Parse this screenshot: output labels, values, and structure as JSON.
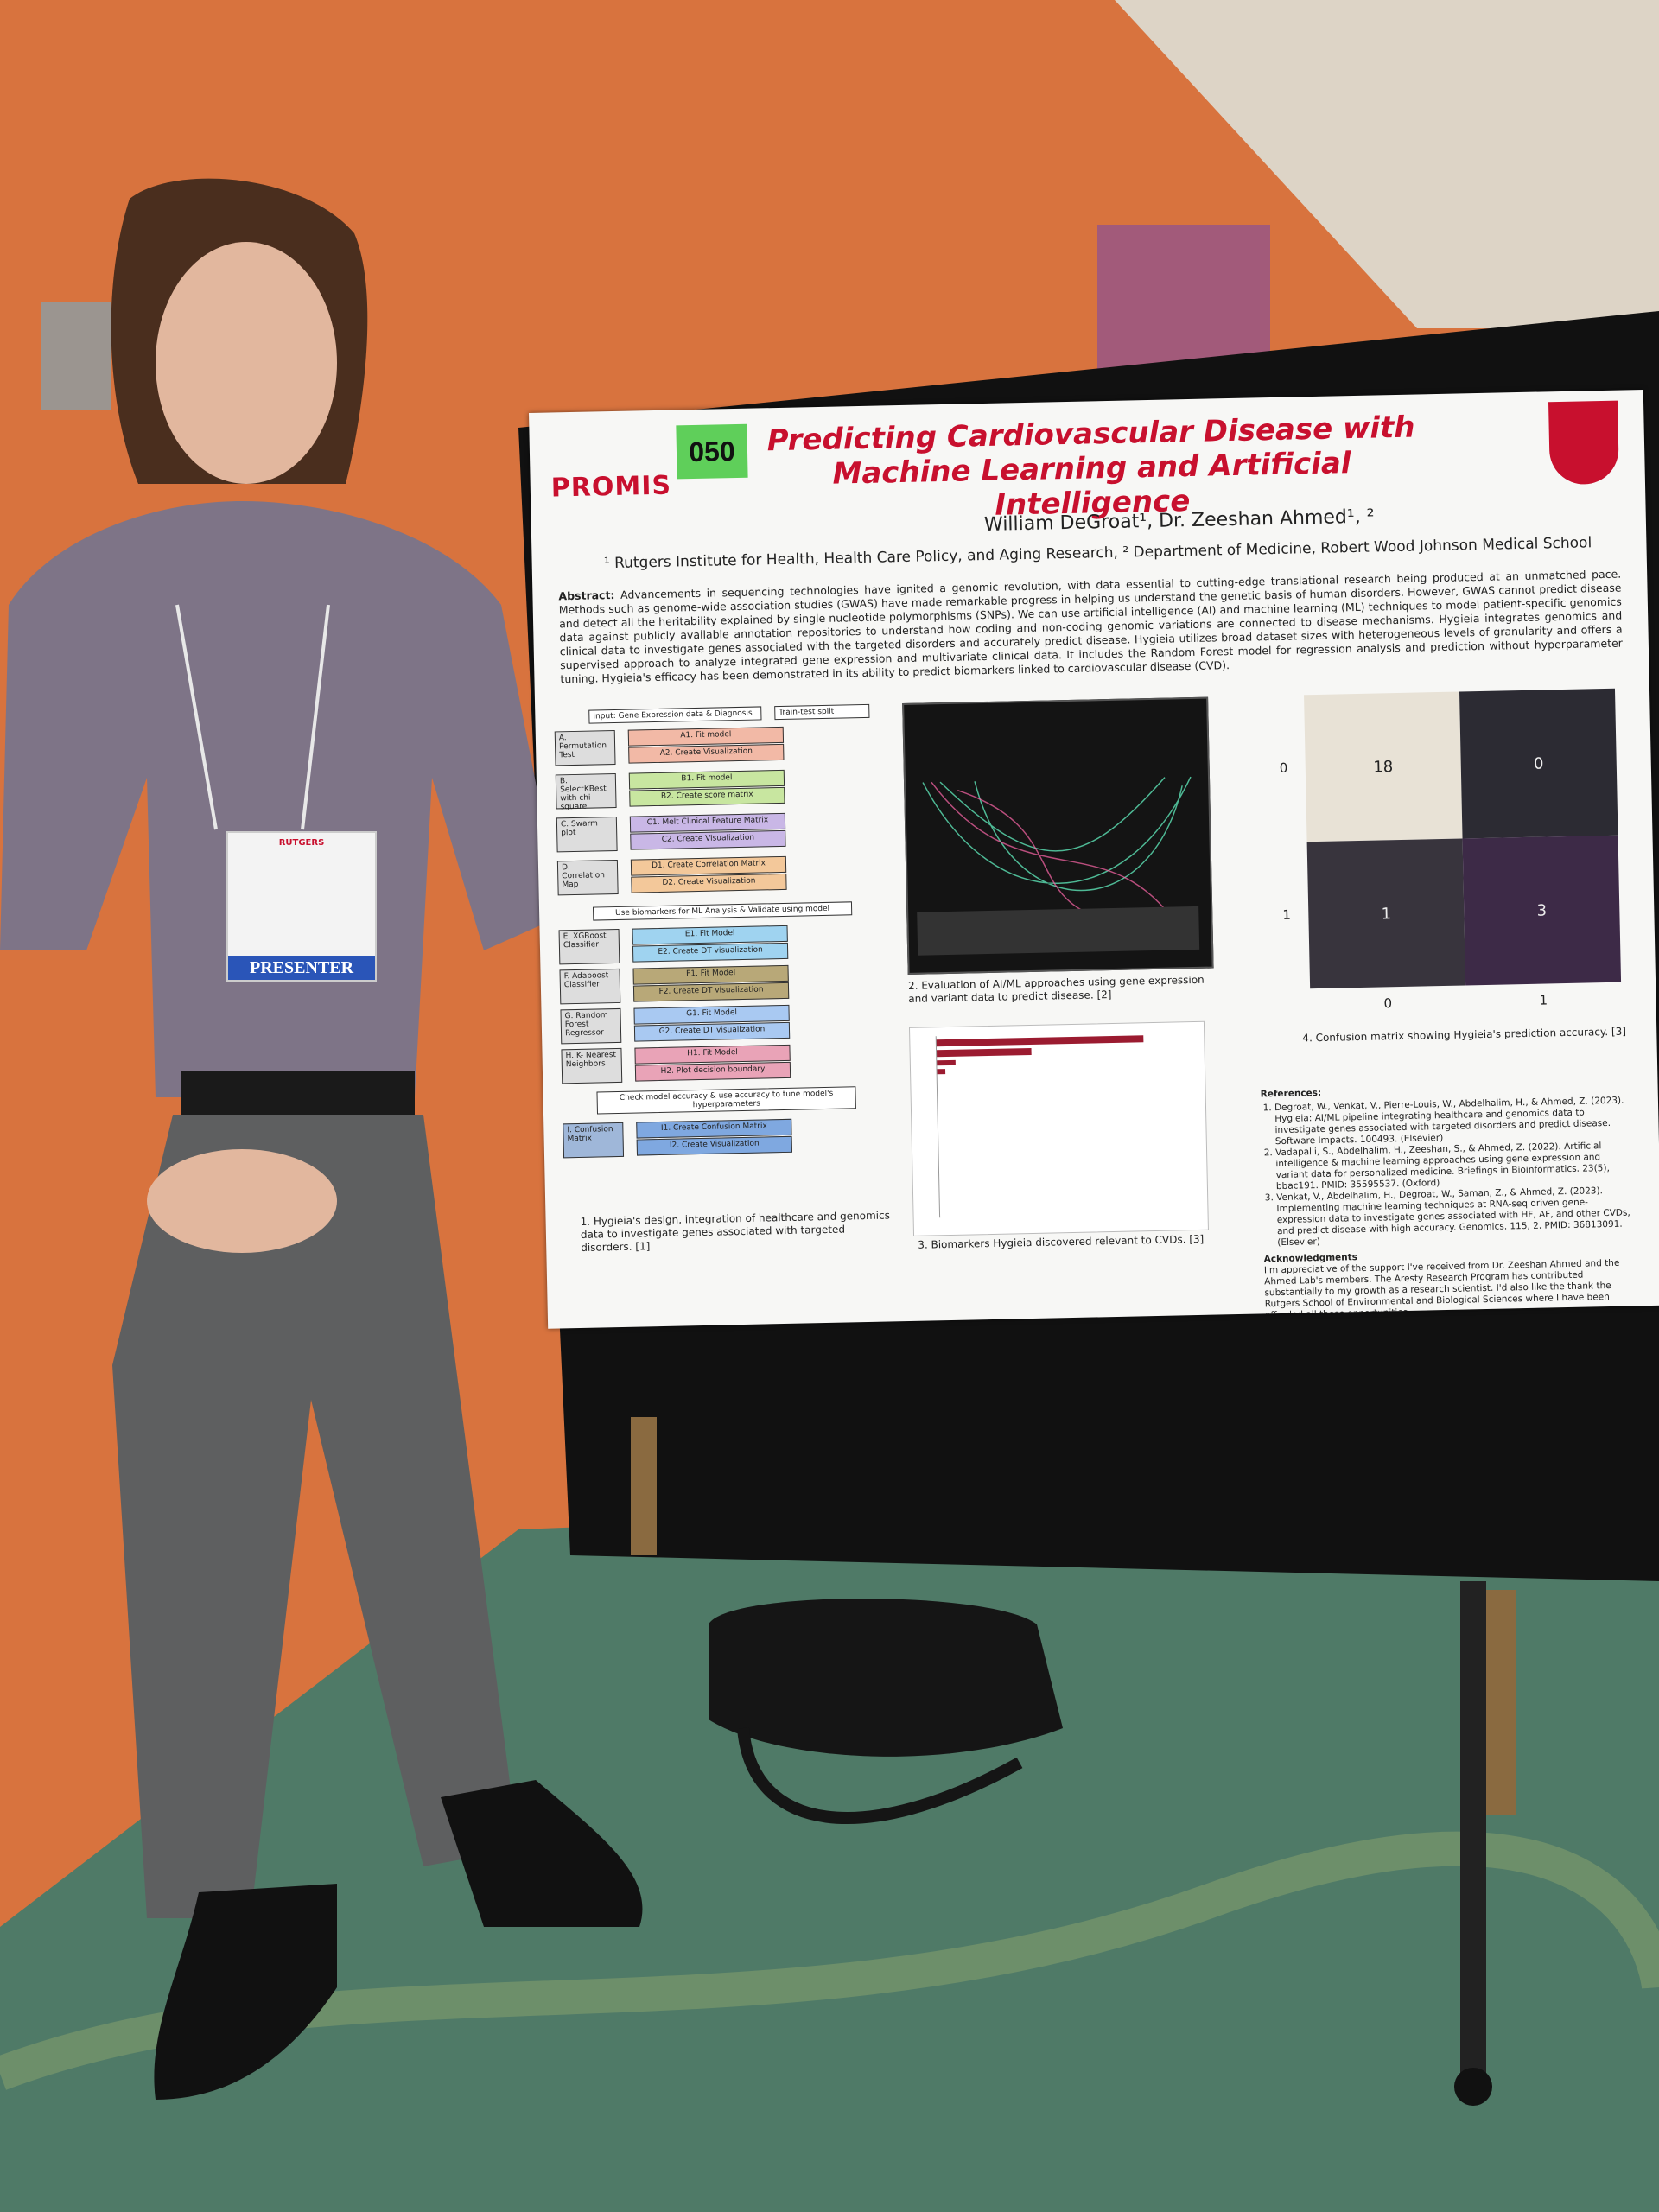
{
  "badge": {
    "institution": "RUTGERS",
    "role": "PRESENTER"
  },
  "poster": {
    "number_tag": "050",
    "logo": "PROMIS",
    "title_line1": "Predicting Cardiovascular Disease with",
    "title_line2": "Machine Learning and Artificial Intelligence",
    "authors": "William DeGroat¹, Dr. Zeeshan Ahmed¹, ²",
    "affiliations": "¹ Rutgers Institute for Health, Health Care Policy, and Aging Research, ² Department of Medicine, Robert Wood Johnson Medical School",
    "abstract_label": "Abstract:",
    "abstract": "Advancements in sequencing technologies have ignited a genomic revolution, with data essential to cutting-edge translational research being produced at an unmatched pace. Methods such as genome-wide association studies (GWAS) have made remarkable progress in helping us understand the genetic basis of human disorders. However, GWAS cannot predict disease and detect all the heritability explained by single nucleotide polymorphisms (SNPs). We can use artificial intelligence (AI) and machine learning (ML) techniques to model patient-specific genomics data against publicly available annotation repositories to understand how coding and non-coding genomic variations are connected to disease mechanisms. Hygieia integrates genomics and clinical data to investigate genes associated with the targeted disorders and accurately predict disease. Hygieia utilizes broad dataset sizes with heterogeneous levels of granularity and offers a supervised approach to analyze integrated gene expression and multivariate clinical data. It includes the Random Forest model for regression analysis and prediction without hyperparameter tuning. Hygieia's efficacy has been demonstrated in its ability to predict biomarkers linked to cardiovascular disease (CVD).",
    "flowchart": {
      "input": "Input: Gene Expression data & Diagnosis",
      "split": "Train-test split",
      "steps": [
        {
          "label": "A. Permutation Test",
          "subs": [
            "A1. Fit model",
            "A2. Create Visualization"
          ]
        },
        {
          "label": "B. SelectKBest with chi square",
          "subs": [
            "B1. Fit model",
            "B2. Create score matrix"
          ]
        },
        {
          "label": "C. Swarm plot",
          "subs": [
            "C1. Melt Clinical Feature Matrix",
            "C2. Create Visualization"
          ]
        },
        {
          "label": "D. Correlation Map",
          "subs": [
            "D1. Create Correlation Matrix",
            "D2. Create Visualization"
          ]
        }
      ],
      "middle": "Use biomarkers for ML Analysis & Validate using model",
      "models": [
        {
          "label": "E. XGBoost Classifier",
          "subs": [
            "E1. Fit Model",
            "E2. Create DT visualization"
          ]
        },
        {
          "label": "F. Adaboost Classifier",
          "subs": [
            "F1. Fit Model",
            "F2. Create DT visualization"
          ]
        },
        {
          "label": "G. Random Forest Regressor",
          "subs": [
            "G1. Fit Model",
            "G2. Create DT visualization"
          ]
        },
        {
          "label": "H. K- Nearest Neighbors",
          "subs": [
            "H1. Fit Model",
            "H2. Plot decision boundary"
          ]
        }
      ],
      "check": "Check model accuracy & use accuracy to tune model's hyperparameters",
      "final": {
        "label": "I. Confusion Matrix",
        "subs": [
          "I1. Create Confusion Matrix",
          "I2. Create Visualization"
        ]
      }
    },
    "captions": [
      "1. Hygieia's design, integration of healthcare and genomics data to investigate genes associated with targeted disorders. [1]",
      "2. Evaluation of AI/ML approaches using gene expression and variant data to predict disease. [2]",
      "3. Biomarkers Hygieia discovered relevant to CVDs. [3]",
      "4. Confusion matrix showing Hygieia's prediction accuracy. [3]"
    ],
    "confusion_matrix": {
      "row_labels": [
        "0",
        "1"
      ],
      "col_labels": [
        "0",
        "1"
      ],
      "cells": [
        [
          18,
          0
        ],
        [
          1,
          3
        ]
      ]
    },
    "references_title": "References:",
    "references": [
      "Degroat, W., Venkat, V., Pierre-Louis, W., Abdelhalim, H., & Ahmed, Z. (2023). Hygieia: AI/ML pipeline integrating healthcare and genomics data to investigate genes associated with targeted disorders and predict disease. Software Impacts. 100493. (Elsevier)",
      "Vadapalli, S., Abdelhalim, H., Zeeshan, S., & Ahmed, Z. (2022). Artificial intelligence & machine learning approaches using gene expression and variant data for personalized medicine. Briefings in Bioinformatics. 23(5), bbac191. PMID: 35595537. (Oxford)",
      "Venkat, V., Abdelhalim, H., Degroat, W., Saman, Z., & Ahmed, Z. (2023). Implementing machine learning techniques at RNA-seq driven gene-expression data to investigate genes associated with HF, AF, and other CVDs, and predict disease with high accuracy. Genomics. 115, 2. PMID: 36813091. (Elsevier)"
    ],
    "acknowledgments_title": "Acknowledgments",
    "acknowledgments": "I'm appreciative of the support I've received from Dr. Zeeshan Ahmed and the Ahmed Lab's members. The Aresty Research Program has contributed substantially to my growth as a research scientist. I'd also like the thank the Rutgers School of Environmental and Biological Sciences where I have been afforded all these opportunities."
  }
}
